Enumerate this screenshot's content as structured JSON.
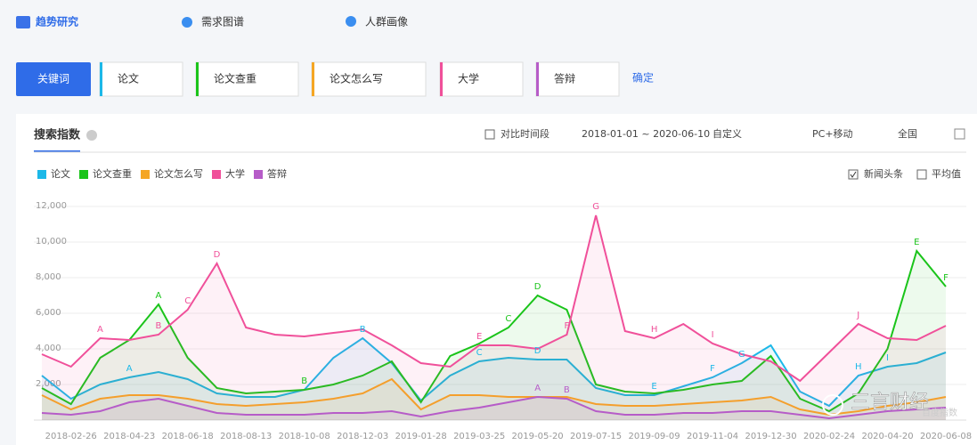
{
  "tabs": [
    "趋势研究",
    "需求图谱",
    "人群画像"
  ],
  "keyword_bar": {
    "button": "关键词",
    "keywords": [
      "论文",
      "论文查重",
      "论文怎么写",
      "大学",
      "答辩"
    ],
    "confirm": "确定"
  },
  "controls": {
    "compare": "对比时间段",
    "date_range": "2018-01-01 ~ 2020-06-10",
    "custom": "自定义",
    "device": "PC+移动",
    "region": "全国",
    "news": "新闻头条",
    "average": "平均值"
  },
  "watermark": {
    "brand": "三言财经",
    "source": "百度指数"
  },
  "chart_data": {
    "type": "area",
    "title": "搜索指数",
    "categories": [
      null,
      "2018-02-26",
      null,
      "2018-04-23",
      null,
      "2018-06-18",
      null,
      "2018-08-13",
      null,
      "2018-10-08",
      null,
      "2018-12-03",
      null,
      "2019-01-28",
      null,
      "2019-03-25",
      null,
      "2019-05-20",
      null,
      "2019-07-15",
      null,
      "2019-09-09",
      null,
      "2019-11-04",
      null,
      "2019-12-30",
      null,
      "2020-02-24",
      null,
      "2020-04-20",
      null,
      "2020-06-08"
    ],
    "ylim": [
      0,
      12000
    ],
    "yticks": [
      {
        "value": 2000,
        "label": "2,000"
      },
      {
        "value": 4000,
        "label": "4,000"
      },
      {
        "value": 6000,
        "label": "6,000"
      },
      {
        "value": 8000,
        "label": "8,000"
      },
      {
        "value": 10000,
        "label": "10,000"
      },
      {
        "value": 12000,
        "label": "12,000"
      }
    ],
    "grid": true,
    "series": [
      {
        "name": "论文",
        "color": "#1cb8e8",
        "values": [
          2500,
          1200,
          2000,
          2400,
          2700,
          2300,
          1500,
          1300,
          1300,
          1700,
          3500,
          4600,
          3200,
          1100,
          2500,
          3300,
          3500,
          3400,
          3400,
          1800,
          1400,
          1400,
          1900,
          2400,
          3200,
          4200,
          1600,
          800,
          2500,
          3000,
          3200,
          3800
        ],
        "point_labels": [
          null,
          null,
          null,
          "A",
          null,
          null,
          null,
          null,
          null,
          null,
          null,
          "B",
          null,
          null,
          null,
          "C",
          null,
          "D",
          null,
          null,
          null,
          "E",
          null,
          "F",
          "G",
          null,
          null,
          null,
          "H",
          "I",
          null,
          null
        ]
      },
      {
        "name": "论文查重",
        "color": "#1ac41a",
        "values": [
          1800,
          900,
          3500,
          4500,
          6500,
          3500,
          1800,
          1500,
          1600,
          1700,
          2000,
          2500,
          3300,
          1000,
          3600,
          4300,
          5200,
          7000,
          6200,
          2000,
          1600,
          1500,
          1700,
          2000,
          2200,
          3600,
          1200,
          500,
          1500,
          4000,
          9500,
          7500
        ],
        "point_labels": [
          null,
          null,
          null,
          null,
          "A",
          null,
          null,
          null,
          null,
          "B",
          null,
          null,
          null,
          null,
          null,
          null,
          "C",
          "D",
          null,
          null,
          null,
          null,
          null,
          null,
          null,
          null,
          null,
          null,
          null,
          null,
          "E",
          "F"
        ]
      },
      {
        "name": "论文怎么写",
        "color": "#f5a623",
        "values": [
          1400,
          600,
          1200,
          1400,
          1400,
          1200,
          900,
          800,
          900,
          1000,
          1200,
          1500,
          2300,
          600,
          1400,
          1400,
          1300,
          1300,
          1300,
          900,
          800,
          800,
          900,
          1000,
          1100,
          1300,
          600,
          300,
          500,
          800,
          1000,
          1300
        ],
        "point_labels": [
          null,
          null,
          null,
          null,
          null,
          null,
          null,
          null,
          null,
          null,
          null,
          null,
          null,
          null,
          null,
          null,
          null,
          null,
          null,
          null,
          null,
          null,
          null,
          null,
          null,
          null,
          null,
          null,
          null,
          null,
          null,
          null
        ]
      },
      {
        "name": "大学",
        "color": "#f0509a",
        "values": [
          3700,
          3000,
          4600,
          4500,
          4800,
          6200,
          8800,
          5200,
          4800,
          4700,
          4900,
          5100,
          4200,
          3200,
          3000,
          4200,
          4200,
          4000,
          4800,
          11500,
          5000,
          4600,
          5400,
          4300,
          3700,
          3300,
          2200,
          3800,
          5400,
          4600,
          4500,
          5300
        ],
        "point_labels": [
          null,
          null,
          "A",
          null,
          "B",
          "C",
          "D",
          null,
          null,
          null,
          null,
          null,
          null,
          null,
          null,
          "E",
          null,
          null,
          "F",
          "G",
          null,
          "H",
          null,
          "I",
          null,
          null,
          null,
          null,
          "J",
          null,
          null,
          null
        ]
      },
      {
        "name": "答辩",
        "color": "#b65cc8",
        "values": [
          400,
          300,
          500,
          1000,
          1200,
          800,
          400,
          300,
          300,
          300,
          400,
          400,
          500,
          200,
          500,
          700,
          1000,
          1300,
          1200,
          500,
          300,
          300,
          400,
          400,
          500,
          500,
          300,
          100,
          300,
          500,
          600,
          700
        ],
        "point_labels": [
          null,
          null,
          null,
          null,
          null,
          null,
          null,
          null,
          null,
          null,
          null,
          null,
          null,
          null,
          null,
          null,
          null,
          "A",
          "B",
          null,
          null,
          null,
          null,
          null,
          null,
          null,
          null,
          null,
          null,
          null,
          null,
          null
        ]
      }
    ]
  }
}
